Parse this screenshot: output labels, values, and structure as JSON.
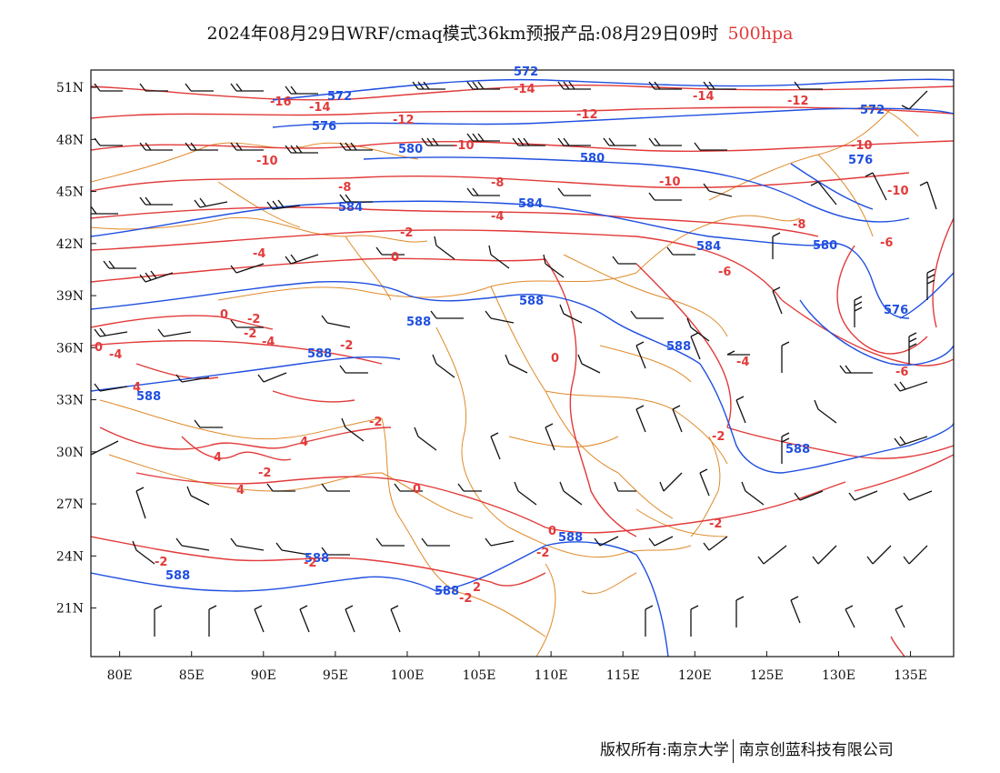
{
  "title": {
    "main": "2024年08月29日WRF/cmaq模式36km预报产品:08月29日09时",
    "level": "500hpa",
    "level_color": "#e23a3a"
  },
  "axes": {
    "lat_ticks": [
      "51N",
      "48N",
      "45N",
      "42N",
      "39N",
      "36N",
      "33N",
      "30N",
      "27N",
      "24N",
      "21N"
    ],
    "lon_ticks": [
      "80E",
      "85E",
      "90E",
      "95E",
      "100E",
      "105E",
      "110E",
      "115E",
      "120E",
      "125E",
      "130E",
      "135E"
    ],
    "lat_values": [
      51,
      48,
      45,
      42,
      39,
      36,
      33,
      30,
      27,
      24,
      21
    ],
    "lon_values": [
      80,
      85,
      90,
      95,
      100,
      105,
      110,
      115,
      120,
      125,
      130,
      135
    ],
    "lon_range": [
      78,
      138
    ],
    "lat_range": [
      18.2,
      52
    ]
  },
  "legend_colors": {
    "geopotential_height": "#1f4fe0",
    "temperature": "#e23a3a",
    "boundaries": "#e08a2a",
    "wind_barbs": "#111111"
  },
  "height_labels": [
    "572",
    "572",
    "576",
    "572",
    "580",
    "576",
    "580",
    "584",
    "584",
    "584",
    "580",
    "588",
    "588",
    "588",
    "588",
    "576",
    "588",
    "588",
    "588",
    "588",
    "588",
    "588"
  ],
  "temperature_labels": [
    "-14",
    "-16",
    "-14",
    "-14",
    "-12",
    "-12",
    "-12",
    "-10",
    "-10",
    "-10",
    "-10",
    "-10",
    "-8",
    "-8",
    "-8",
    "-6",
    "-6",
    "-6",
    "-4",
    "-4",
    "-4",
    "-4",
    "-2",
    "-2",
    "-2",
    "-2",
    "-2",
    "-2",
    "-2",
    "0",
    "0",
    "0",
    "0",
    "0",
    "0",
    "-2",
    "-2",
    "-2",
    "4",
    "4",
    "4",
    "4",
    "-4",
    "-2",
    "-2",
    "2"
  ],
  "credit": {
    "left": "版权所有:南京大学",
    "right": "南京创蓝科技有限公司"
  }
}
